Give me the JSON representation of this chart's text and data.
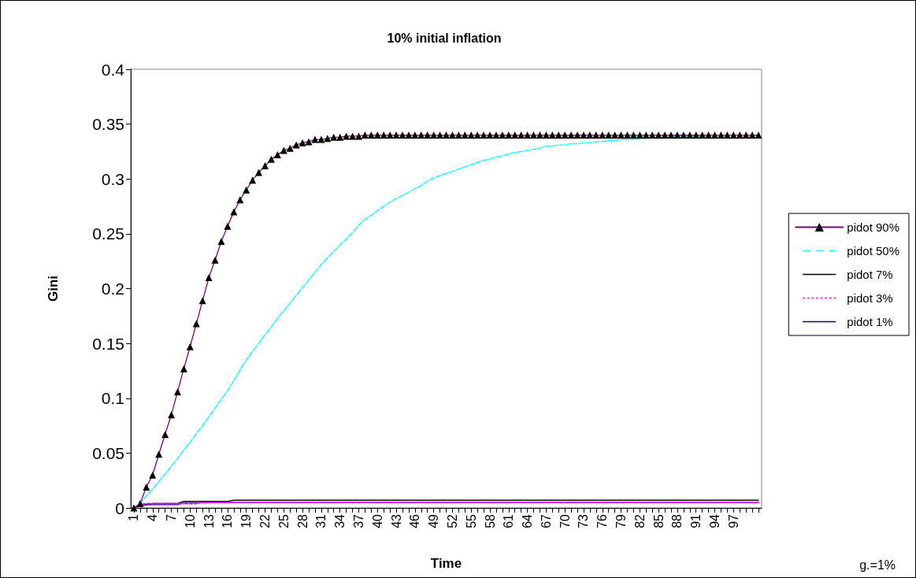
{
  "chart_data": {
    "type": "line",
    "title": "10% initial inflation",
    "xlabel": "Time",
    "ylabel": "Gini",
    "categories": [
      "1",
      null,
      null,
      "4",
      null,
      null,
      "7",
      null,
      null,
      "10",
      null,
      null,
      "13",
      null,
      null,
      "16",
      null,
      null,
      "19",
      null,
      null,
      "22",
      null,
      null,
      "25",
      null,
      null,
      "28",
      null,
      null,
      "31",
      null,
      null,
      "34",
      null,
      null,
      "37",
      null,
      null,
      "40",
      null,
      null,
      "43",
      null,
      null,
      "46",
      null,
      null,
      "49",
      null,
      null,
      "52",
      null,
      null,
      "55",
      null,
      null,
      "58",
      null,
      null,
      "61",
      null,
      null,
      "64",
      null,
      null,
      "67",
      null,
      null,
      "70",
      null,
      null,
      "73",
      null,
      null,
      "76",
      null,
      null,
      "79",
      null,
      null,
      "82",
      null,
      null,
      "85",
      null,
      null,
      "88",
      null,
      null,
      "91",
      null,
      null,
      "94",
      null,
      null,
      "97",
      null,
      null,
      null,
      null
    ],
    "ylim": [
      0,
      0.4
    ],
    "yticks": [
      0,
      0.05,
      0.1,
      0.15,
      0.2,
      0.25,
      0.3,
      0.35,
      0.4
    ],
    "grid": false,
    "legend": "right",
    "marker": "none",
    "annotations": [
      "g.=1%"
    ],
    "series": [
      {
        "name": "pidot 90%",
        "color": "#800080",
        "marker": "triangle",
        "line_style": "solid",
        "values": [
          0,
          0.004,
          0.019,
          0.03,
          0.049,
          0.067,
          0.085,
          0.106,
          0.127,
          0.147,
          0.168,
          0.189,
          0.21,
          0.226,
          0.243,
          0.257,
          0.27,
          0.281,
          0.29,
          0.299,
          0.306,
          0.312,
          0.318,
          0.322,
          0.326,
          0.328,
          0.331,
          0.333,
          0.334,
          0.336,
          0.336,
          0.337,
          0.338,
          0.338,
          0.339,
          0.339,
          0.339,
          0.34,
          0.34,
          0.34,
          0.34,
          0.34,
          0.34,
          0.34,
          0.34,
          0.34,
          0.34,
          0.34,
          0.34,
          0.34,
          0.34,
          0.34,
          0.34,
          0.34,
          0.34,
          0.34,
          0.34,
          0.34,
          0.34,
          0.34,
          0.34,
          0.34,
          0.34,
          0.34,
          0.34,
          0.34,
          0.34,
          0.34,
          0.34,
          0.34,
          0.34,
          0.34,
          0.34,
          0.34,
          0.34,
          0.34,
          0.34,
          0.34,
          0.34,
          0.34,
          0.34,
          0.34,
          0.34,
          0.34,
          0.34,
          0.34,
          0.34,
          0.34,
          0.34,
          0.34,
          0.34,
          0.34,
          0.34,
          0.34,
          0.34,
          0.34,
          0.34,
          0.34,
          0.34,
          0.34,
          0.34
        ]
      },
      {
        "name": "pidot 50%",
        "color": "#00ffff",
        "line_style": "dashed",
        "values": [
          0,
          0.004,
          0.011,
          0.017,
          0.024,
          0.031,
          0.038,
          0.045,
          0.053,
          0.06,
          0.068,
          0.075,
          0.083,
          0.091,
          0.099,
          0.107,
          0.116,
          0.126,
          0.135,
          0.143,
          0.15,
          0.158,
          0.165,
          0.173,
          0.18,
          0.187,
          0.194,
          0.201,
          0.208,
          0.215,
          0.222,
          0.228,
          0.234,
          0.24,
          0.245,
          0.251,
          0.258,
          0.263,
          0.267,
          0.271,
          0.275,
          0.279,
          0.282,
          0.285,
          0.288,
          0.291,
          0.294,
          0.298,
          0.301,
          0.303,
          0.305,
          0.307,
          0.309,
          0.311,
          0.313,
          0.315,
          0.317,
          0.318,
          0.32,
          0.321,
          0.323,
          0.324,
          0.325,
          0.326,
          0.327,
          0.328,
          0.33,
          0.33,
          0.331,
          0.331,
          0.332,
          0.332,
          0.333,
          0.333,
          0.334,
          0.334,
          0.335,
          0.335,
          0.336,
          0.336,
          0.336,
          0.337,
          0.337,
          0.338,
          0.338,
          0.338,
          0.338,
          0.339,
          0.339,
          0.339,
          0.339,
          0.339,
          0.339,
          null,
          null,
          null,
          null,
          null,
          null,
          null,
          null
        ]
      },
      {
        "name": "pidot 7%",
        "color": "#000000",
        "line_style": "solid",
        "values": [
          0,
          0.002,
          0.003,
          0.004,
          0.004,
          0.004,
          0.004,
          0.004,
          0.006,
          0.006,
          0.006,
          0.006,
          0.006,
          0.006,
          0.006,
          0.006,
          0.007,
          0.007,
          0.007,
          0.007,
          0.007,
          0.007,
          0.007,
          0.007,
          0.007,
          0.007,
          0.007,
          0.007,
          0.007,
          0.007,
          0.007,
          0.007,
          0.007,
          0.007,
          0.007,
          0.007,
          0.007,
          0.007,
          0.007,
          0.007,
          0.007,
          0.007,
          0.007,
          0.007,
          0.007,
          0.007,
          0.007,
          0.007,
          0.007,
          0.007,
          0.007,
          0.007,
          0.007,
          0.007,
          0.007,
          0.007,
          0.007,
          0.007,
          0.007,
          0.007,
          0.007,
          0.007,
          0.007,
          0.007,
          0.007,
          0.007,
          0.007,
          0.007,
          0.007,
          0.007,
          0.007,
          0.007,
          0.007,
          0.007,
          0.007,
          0.007,
          0.007,
          0.007,
          0.007,
          0.007,
          0.007,
          0.007,
          0.007,
          0.007,
          0.007,
          0.007,
          0.007,
          0.007,
          0.007,
          0.007,
          0.007,
          0.007,
          0.007,
          0.007,
          0.007,
          0.007,
          0.007,
          0.007,
          0.007,
          0.007,
          0.007
        ]
      },
      {
        "name": "pidot 3%",
        "color": "#ff00ff",
        "line_style": "dotted",
        "values": [
          0,
          0.003,
          0.004,
          0.004,
          0.004,
          0.004,
          0.004,
          0.004,
          0.004,
          0.004,
          0.004,
          0.005,
          0.005,
          0.005,
          0.005,
          0.005,
          0.005,
          0.005,
          0.005,
          0.005,
          0.005,
          0.005,
          0.005,
          0.005,
          0.005,
          0.005,
          0.005,
          0.005,
          0.005,
          0.005,
          0.005,
          0.005,
          0.005,
          0.005,
          0.005,
          0.005,
          0.005,
          0.005,
          0.005,
          0.005,
          0.005,
          0.005,
          0.005,
          0.005,
          0.005,
          0.005,
          0.005,
          0.005,
          0.005,
          0.005,
          0.005,
          0.005,
          0.005,
          0.005,
          0.005,
          0.005,
          0.005,
          0.005,
          0.005,
          0.005,
          0.005,
          0.005,
          0.005,
          0.005,
          0.005,
          0.005,
          0.005,
          0.005,
          0.005,
          0.005,
          0.005,
          0.005,
          0.005,
          0.005,
          0.005,
          0.005,
          0.005,
          0.005,
          0.005,
          0.005,
          0.005,
          0.005,
          0.005,
          0.005,
          0.005,
          0.005,
          0.005,
          0.005,
          0.005,
          0.005,
          0.005,
          0.005,
          0.005,
          0.005,
          0.005,
          0.005,
          0.005,
          0.005,
          0.005,
          0.005,
          0.005
        ]
      },
      {
        "name": "pidot 1%",
        "color": "#000080",
        "line_style": "solid",
        "values": [
          0,
          0.002,
          0.003,
          0.003,
          0.003,
          0.003,
          0.003,
          0.003,
          0.005,
          0.005,
          0.005,
          0.005,
          0.005,
          0.005,
          0.005,
          0.005,
          0.005,
          0.005,
          0.005,
          0.005,
          0.005,
          0.005,
          0.005,
          0.005,
          0.005,
          0.005,
          0.005,
          0.005,
          0.005,
          0.005,
          0.005,
          0.005,
          0.005,
          0.005,
          0.005,
          0.005,
          0.005,
          0.005,
          0.005,
          0.005,
          0.005,
          0.005,
          0.005,
          0.005,
          0.005,
          0.005,
          0.005,
          0.005,
          0.005,
          0.005,
          0.005,
          0.005,
          0.005,
          0.005,
          0.005,
          0.005,
          0.005,
          0.005,
          0.005,
          0.005,
          0.005,
          0.005,
          0.005,
          0.005,
          0.005,
          0.005,
          0.005,
          0.005,
          0.005,
          0.005,
          0.005,
          0.005,
          0.005,
          0.005,
          0.005,
          0.005,
          0.005,
          0.005,
          0.005,
          0.005,
          0.005,
          0.005,
          0.005,
          0.005,
          0.005,
          0.005,
          0.005,
          0.005,
          0.005,
          0.005,
          0.005,
          0.005,
          0.005,
          0.005,
          0.005,
          0.005,
          0.005,
          0.005,
          0.005,
          0.005,
          0.005
        ]
      }
    ]
  }
}
